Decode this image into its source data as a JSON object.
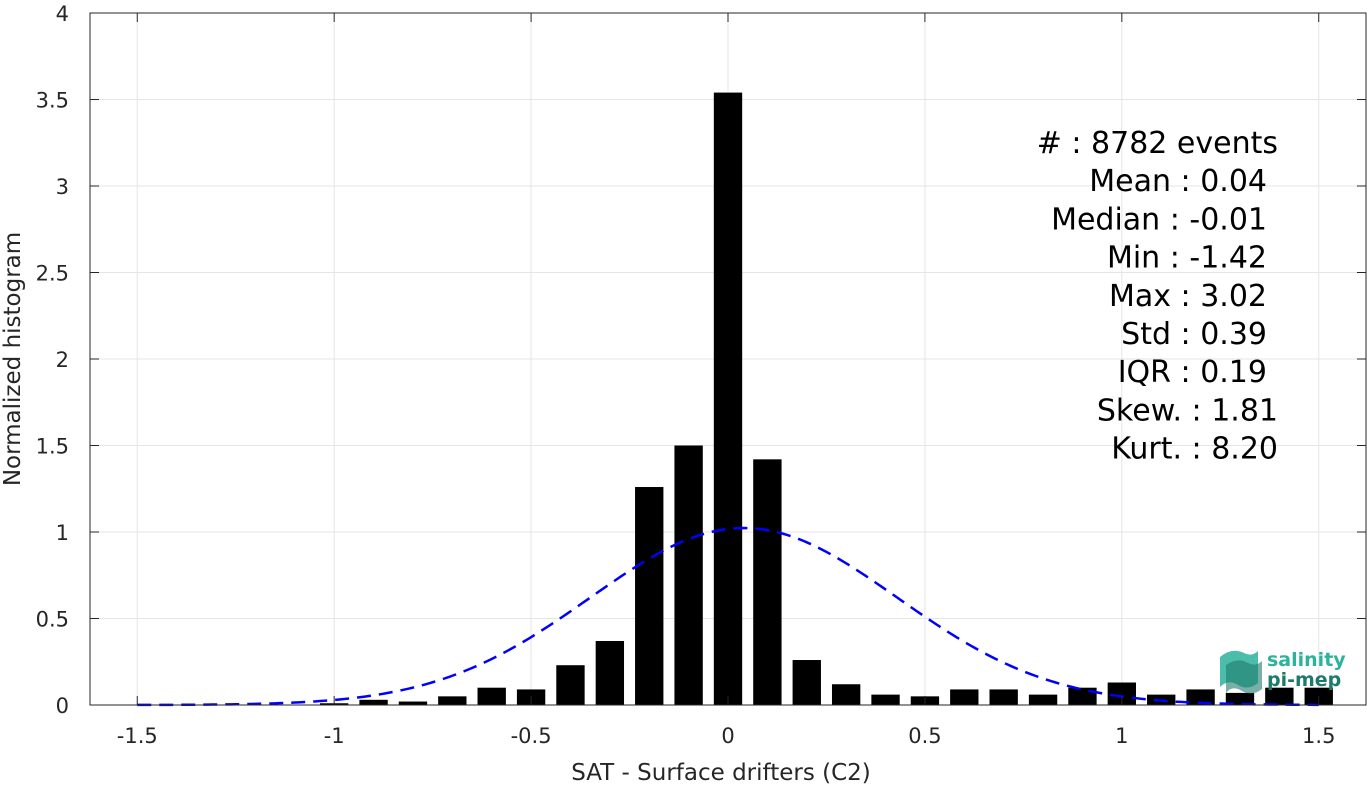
{
  "chart_data": {
    "type": "bar",
    "xlabel": "SAT - Surface drifters (C2)",
    "ylabel": "Normalized histogram",
    "xlim": [
      -1.62,
      1.62
    ],
    "ylim": [
      0,
      4
    ],
    "grid": true,
    "xticks": [
      -1.5,
      -1,
      -0.5,
      0,
      0.5,
      1,
      1.5
    ],
    "xtick_labels": [
      "-1.5",
      "-1",
      "-0.5",
      "0",
      "0.5",
      "1",
      "1.5"
    ],
    "yticks": [
      0,
      0.5,
      1,
      1.5,
      2,
      2.5,
      3,
      3.5,
      4
    ],
    "ytick_labels": [
      "0",
      "0.5",
      "1",
      "1.5",
      "2",
      "2.5",
      "3",
      "3.5",
      "4"
    ],
    "bin_width": 0.1,
    "bars": {
      "x": [
        -1.5,
        -1.4,
        -1.3,
        -1.2,
        -1.1,
        -1.0,
        -0.9,
        -0.8,
        -0.7,
        -0.6,
        -0.5,
        -0.4,
        -0.3,
        -0.2,
        -0.1,
        0.0,
        0.1,
        0.2,
        0.3,
        0.4,
        0.5,
        0.6,
        0.7,
        0.8,
        0.9,
        1.0,
        1.1,
        1.2,
        1.3,
        1.4,
        1.5
      ],
      "values": [
        0,
        0,
        0,
        0,
        0,
        0.01,
        0.03,
        0.02,
        0.05,
        0.1,
        0.09,
        0.23,
        0.37,
        1.26,
        1.5,
        3.54,
        1.42,
        0.26,
        0.12,
        0.06,
        0.05,
        0.09,
        0.09,
        0.06,
        0.1,
        0.13,
        0.06,
        0.09,
        0.07,
        0.1,
        0.1
      ],
      "color": "#000000"
    },
    "fit": {
      "style": "dashed",
      "color": "#0000ff",
      "mean": 0.04,
      "std": 0.39
    },
    "stats": [
      {
        "label": "#  : 8782 events"
      },
      {
        "label": "Mean : 0.04"
      },
      {
        "label": "Median : -0.01"
      },
      {
        "label": "Min : -1.42"
      },
      {
        "label": "Max : 3.02"
      },
      {
        "label": "Std : 0.39"
      },
      {
        "label": "IQR : 0.19"
      },
      {
        "label": "Skew. : 1.81"
      },
      {
        "label": "Kurt. : 8.20"
      }
    ]
  },
  "logo": {
    "line1": "salinity",
    "line2": "pi-mep",
    "color1": "#2bb39c",
    "color2": "#1e7a6a"
  }
}
